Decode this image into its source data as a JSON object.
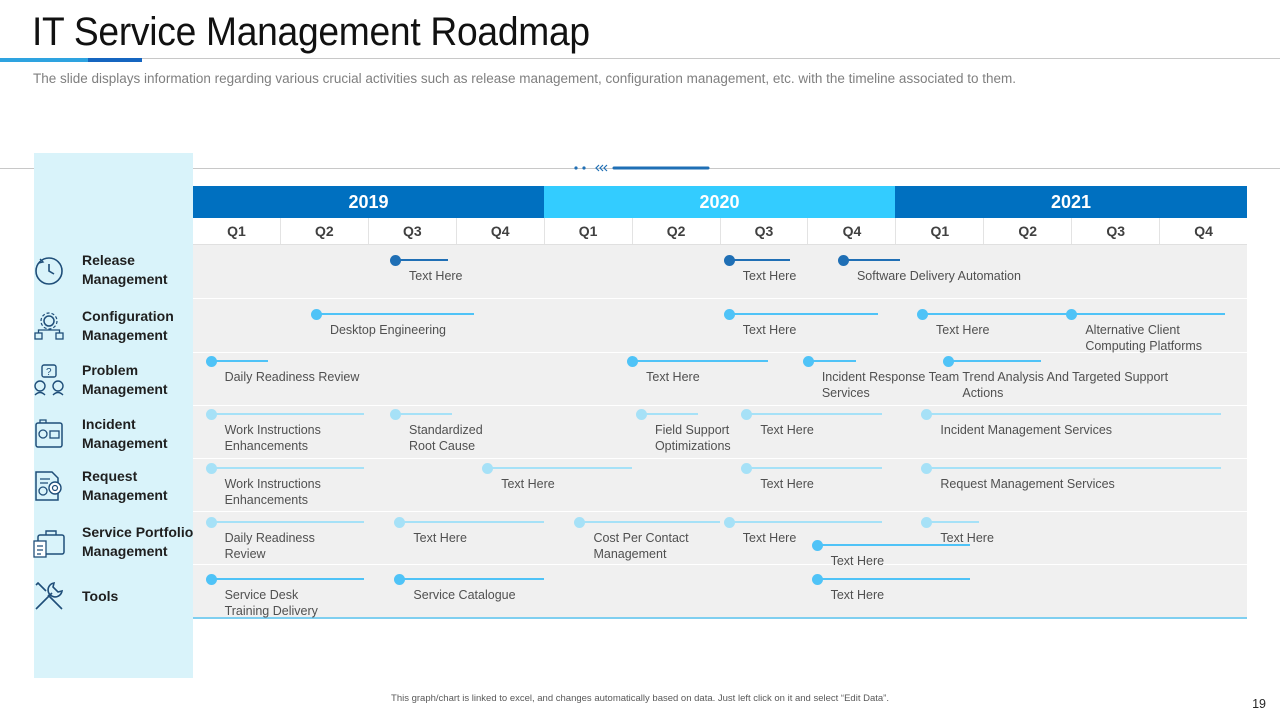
{
  "header": {
    "title": "IT Service Management Roadmap",
    "subtitle": "The slide displays information regarding various crucial activities such as release management, configuration management, etc. with the timeline associated to them."
  },
  "timeline": {
    "years": [
      "2019",
      "2020",
      "2021"
    ],
    "year_colors": [
      "#0070c0",
      "#33ccff",
      "#0070c0"
    ],
    "quarters": [
      "Q1",
      "Q2",
      "Q3",
      "Q4",
      "Q1",
      "Q2",
      "Q3",
      "Q4",
      "Q1",
      "Q2",
      "Q3",
      "Q4"
    ]
  },
  "categories": [
    {
      "label": "Release\nManagement",
      "icon": "release-cycle-icon"
    },
    {
      "label": "Configuration\nManagement",
      "icon": "configuration-network-icon"
    },
    {
      "label": "Problem\nManagement",
      "icon": "problem-people-icon"
    },
    {
      "label": "Incident\nManagement",
      "icon": "incident-briefcase-icon"
    },
    {
      "label": "Request\nManagement",
      "icon": "request-document-icon"
    },
    {
      "label": "Service Portfolio\nManagement",
      "icon": "portfolio-briefcase-icon"
    },
    {
      "label": "Tools",
      "icon": "tools-wrench-icon"
    }
  ],
  "colors": {
    "dark": "#1f6fb5",
    "mid": "#4fc3f7",
    "light": "#a6e1f7",
    "grid": "#f0f0f0",
    "panel": "#d9f3fa"
  },
  "milestones": [
    {
      "row": 0,
      "text": "Text Here",
      "start": 2.3,
      "end": 2.9,
      "shade": "dark"
    },
    {
      "row": 0,
      "text": "Text Here",
      "start": 6.1,
      "end": 6.8,
      "shade": "dark"
    },
    {
      "row": 0,
      "text": "Software Delivery  Automation",
      "start": 7.4,
      "end": 8.05,
      "shade": "dark"
    },
    {
      "row": 1,
      "text": "Desktop Engineering",
      "start": 1.4,
      "end": 3.2,
      "shade": "mid"
    },
    {
      "row": 1,
      "text": "Text Here",
      "start": 6.1,
      "end": 7.8,
      "shade": "mid"
    },
    {
      "row": 1,
      "text": "Text Here",
      "start": 8.3,
      "end": 10.9,
      "shade": "mid"
    },
    {
      "row": 1,
      "text": "Alternative  Client\nComputing  Platforms",
      "start": 10.0,
      "end": 11.75,
      "shade": "mid"
    },
    {
      "row": 2,
      "text": "Daily  Readiness Review",
      "start": 0.2,
      "end": 0.85,
      "shade": "mid"
    },
    {
      "row": 2,
      "text": "Text Here",
      "start": 5.0,
      "end": 6.55,
      "shade": "mid"
    },
    {
      "row": 2,
      "text": "Incident  Response  Team\nServices",
      "start": 7.0,
      "end": 7.55,
      "shade": "mid"
    },
    {
      "row": 2,
      "text": "Trend  Analysis  And  Targeted  Support\nActions",
      "start": 8.6,
      "end": 9.65,
      "shade": "mid"
    },
    {
      "row": 3,
      "text": "Work Instructions\nEnhancements",
      "start": 0.2,
      "end": 1.95,
      "shade": "light"
    },
    {
      "row": 3,
      "text": "Standardized\nRoot Cause",
      "start": 2.3,
      "end": 2.95,
      "shade": "light"
    },
    {
      "row": 3,
      "text": "Field Support\nOptimizations",
      "start": 5.1,
      "end": 5.75,
      "shade": "light"
    },
    {
      "row": 3,
      "text": "Text Here",
      "start": 6.3,
      "end": 7.85,
      "shade": "light"
    },
    {
      "row": 3,
      "text": "Incident Management  Services",
      "start": 8.35,
      "end": 11.7,
      "shade": "light"
    },
    {
      "row": 4,
      "text": "Work Instructions\nEnhancements",
      "start": 0.2,
      "end": 1.95,
      "shade": "light"
    },
    {
      "row": 4,
      "text": "Text Here",
      "start": 3.35,
      "end": 5.0,
      "shade": "light"
    },
    {
      "row": 4,
      "text": "Text Here",
      "start": 6.3,
      "end": 7.85,
      "shade": "light"
    },
    {
      "row": 4,
      "text": "Request  Management  Services",
      "start": 8.35,
      "end": 11.7,
      "shade": "light"
    },
    {
      "row": 5,
      "text": "Daily Readiness\nReview",
      "start": 0.2,
      "end": 1.95,
      "shade": "light"
    },
    {
      "row": 5,
      "text": "Text Here",
      "start": 2.35,
      "end": 4.0,
      "shade": "light"
    },
    {
      "row": 5,
      "text": "Cost Per Contact\nManagement",
      "start": 4.4,
      "end": 6.0,
      "shade": "light"
    },
    {
      "row": 5,
      "text": "Text Here",
      "start": 6.1,
      "end": 7.85,
      "shade": "light"
    },
    {
      "row": 5,
      "text": "Text Here",
      "start": 7.1,
      "end": 8.85,
      "shade": "mid"
    },
    {
      "row": 5,
      "text": "Text Here",
      "start": 8.35,
      "end": 8.95,
      "shade": "light"
    },
    {
      "row": 6,
      "text": "Service  Desk\nTraining  Delivery",
      "start": 0.2,
      "end": 1.95,
      "shade": "mid"
    },
    {
      "row": 6,
      "text": "Service Catalogue",
      "start": 2.35,
      "end": 4.0,
      "shade": "mid"
    },
    {
      "row": 6,
      "text": "Text Here",
      "start": 7.1,
      "end": 8.85,
      "shade": "mid"
    }
  ],
  "footer": {
    "note": "This graph/chart is linked to excel, and changes automatically based on data. Just left click on it and select “Edit Data”.",
    "page_number": "19"
  }
}
